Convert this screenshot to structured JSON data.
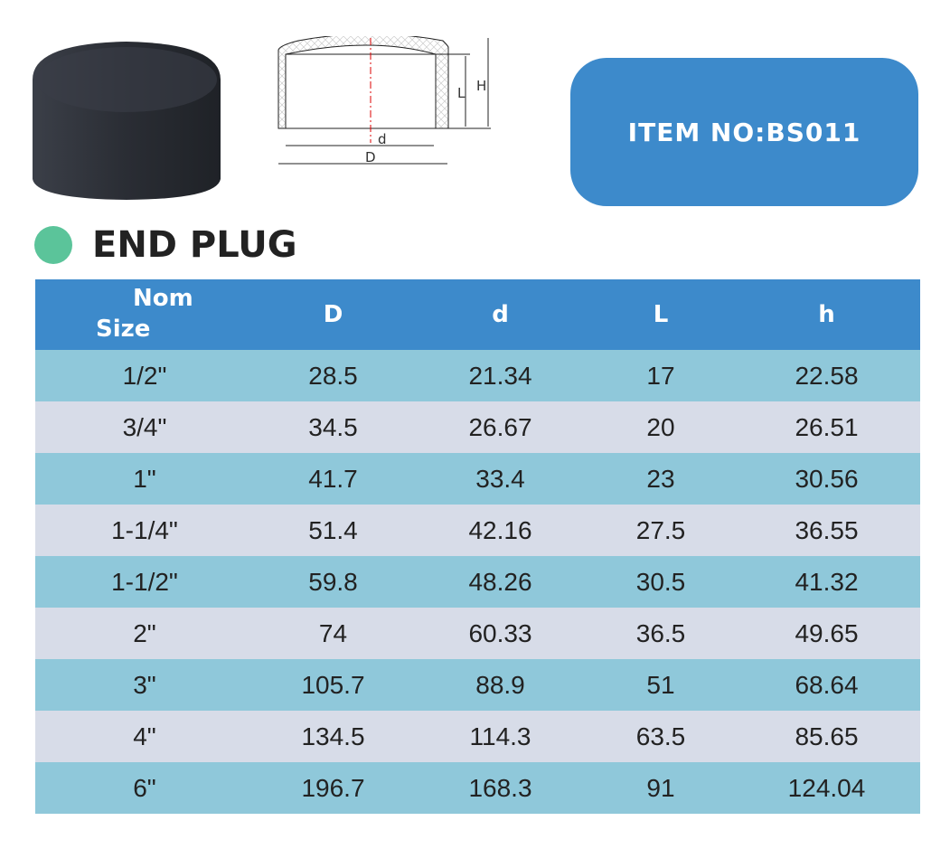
{
  "item_no": "ITEM NO:BS011",
  "title": "END PLUG",
  "diagram": {
    "labels": {
      "d": "d",
      "D": "D",
      "L": "L",
      "H": "H"
    }
  },
  "colors": {
    "header": "#3d8acb",
    "row_odd": "#8fc8da",
    "row_even": "#d7dce8",
    "dot": "#5bc49a"
  },
  "table": {
    "headers": {
      "nom_line1": "Nom",
      "nom_line2": "Size",
      "D": "D",
      "d": "d",
      "L": "L",
      "h": "h"
    },
    "rows": [
      [
        "1/2\"",
        "28.5",
        "21.34",
        "17",
        "22.58"
      ],
      [
        "3/4\"",
        "34.5",
        "26.67",
        "20",
        "26.51"
      ],
      [
        "1\"",
        "41.7",
        "33.4",
        "23",
        "30.56"
      ],
      [
        "1-1/4\"",
        "51.4",
        "42.16",
        "27.5",
        "36.55"
      ],
      [
        "1-1/2\"",
        "59.8",
        "48.26",
        "30.5",
        "41.32"
      ],
      [
        "2\"",
        "74",
        "60.33",
        "36.5",
        "49.65"
      ],
      [
        "3\"",
        "105.7",
        "88.9",
        "51",
        "68.64"
      ],
      [
        "4\"",
        "134.5",
        "114.3",
        "63.5",
        "85.65"
      ],
      [
        "6\"",
        "196.7",
        "168.3",
        "91",
        "124.04"
      ]
    ]
  }
}
